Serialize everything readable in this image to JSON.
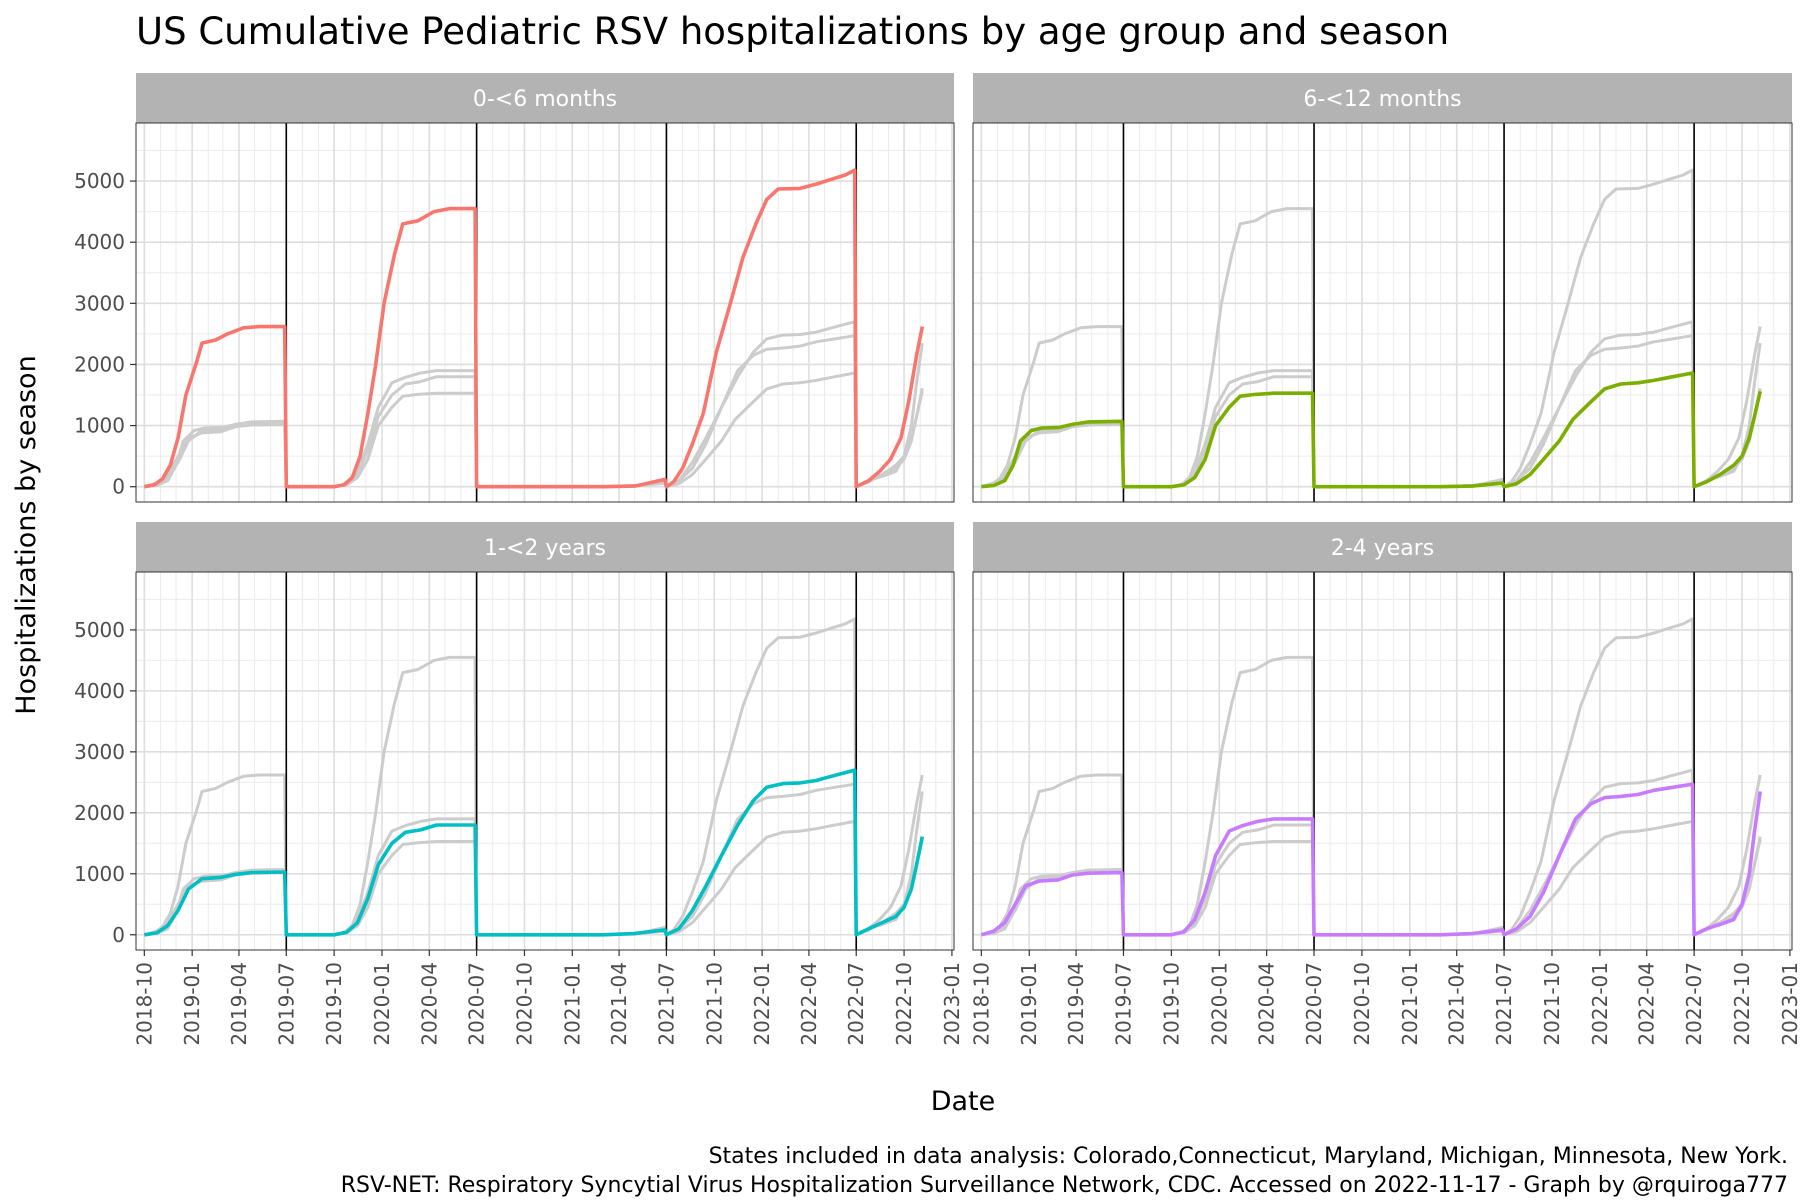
{
  "title": "US Cumulative Pediatric RSV hospitalizations by age group and season",
  "xlabel": "Date",
  "ylabel": "Hospitalizations by season",
  "caption_lines": [
    "States included in data analysis: Colorado,Connecticut, Maryland, Michigan, Minnesota, New York.",
    "RSV-NET: Respiratory Syncytial Virus Hospitalization Surveillance Network, CDC. Accessed on 2022-11-17 - Graph by @rquiroga777"
  ],
  "colors": {
    "0-<6 months": "#F8766D",
    "6-<12 months": "#7CAE00",
    "1-<2 years": "#00BFC4",
    "2-4 years": "#C77CFF",
    "background_series": "#cccccc",
    "season_divider": "#000000",
    "strip": "#b3b3b3"
  },
  "chart_data": {
    "type": "line",
    "facets": [
      "0-<6 months",
      "6-<12 months",
      "1-<2 years",
      "2-4 years"
    ],
    "x_ticks": [
      "2018-10",
      "2019-01",
      "2019-04",
      "2019-07",
      "2019-10",
      "2020-01",
      "2020-04",
      "2020-07",
      "2020-10",
      "2021-01",
      "2021-04",
      "2021-07",
      "2021-10",
      "2022-01",
      "2022-04",
      "2022-07",
      "2022-10",
      "2023-01"
    ],
    "y_ticks": [
      0,
      1000,
      2000,
      3000,
      4000,
      5000
    ],
    "xlim": [
      "2018-09-15",
      "2023-01-05"
    ],
    "ylim": [
      -250,
      5950
    ],
    "season_dividers": [
      "2019-07-01",
      "2020-07-01",
      "2021-07-01",
      "2022-07-01"
    ],
    "grid": true,
    "series": [
      {
        "name": "0-<6 months",
        "values": [
          [
            "2018-10-01",
            0
          ],
          [
            "2018-10-20",
            30
          ],
          [
            "2018-11-05",
            130
          ],
          [
            "2018-11-20",
            350
          ],
          [
            "2018-12-05",
            800
          ],
          [
            "2018-12-20",
            1500
          ],
          [
            "2019-01-10",
            2050
          ],
          [
            "2019-01-20",
            2350
          ],
          [
            "2019-02-15",
            2400
          ],
          [
            "2019-03-10",
            2500
          ],
          [
            "2019-04-10",
            2600
          ],
          [
            "2019-05-10",
            2620
          ],
          [
            "2019-06-28",
            2620
          ],
          [
            "2019-07-01",
            0
          ],
          [
            "2019-10-01",
            0
          ],
          [
            "2019-10-20",
            30
          ],
          [
            "2019-11-05",
            150
          ],
          [
            "2019-11-20",
            500
          ],
          [
            "2019-12-05",
            1200
          ],
          [
            "2019-12-20",
            2000
          ],
          [
            "2020-01-05",
            3000
          ],
          [
            "2020-01-25",
            3800
          ],
          [
            "2020-02-10",
            4300
          ],
          [
            "2020-03-10",
            4350
          ],
          [
            "2020-04-10",
            4500
          ],
          [
            "2020-05-10",
            4550
          ],
          [
            "2020-06-28",
            4550
          ],
          [
            "2020-07-01",
            0
          ],
          [
            "2021-03-01",
            0
          ],
          [
            "2021-05-01",
            10
          ],
          [
            "2021-06-28",
            120
          ],
          [
            "2021-07-01",
            0
          ],
          [
            "2021-07-15",
            80
          ],
          [
            "2021-08-01",
            300
          ],
          [
            "2021-08-20",
            700
          ],
          [
            "2021-09-10",
            1200
          ],
          [
            "2021-10-05",
            2200
          ],
          [
            "2021-11-01",
            3000
          ],
          [
            "2021-11-25",
            3750
          ],
          [
            "2021-12-20",
            4300
          ],
          [
            "2022-01-10",
            4700
          ],
          [
            "2022-02-01",
            4870
          ],
          [
            "2022-03-15",
            4880
          ],
          [
            "2022-04-15",
            4950
          ],
          [
            "2022-05-15",
            5030
          ],
          [
            "2022-06-10",
            5100
          ],
          [
            "2022-06-28",
            5180
          ],
          [
            "2022-07-01",
            0
          ],
          [
            "2022-07-25",
            100
          ],
          [
            "2022-08-15",
            250
          ],
          [
            "2022-09-05",
            450
          ],
          [
            "2022-09-25",
            800
          ],
          [
            "2022-10-10",
            1400
          ],
          [
            "2022-10-25",
            2150
          ],
          [
            "2022-11-05",
            2620
          ]
        ]
      },
      {
        "name": "6-<12 months",
        "values": [
          [
            "2018-10-01",
            0
          ],
          [
            "2018-10-25",
            20
          ],
          [
            "2018-11-15",
            100
          ],
          [
            "2018-12-01",
            350
          ],
          [
            "2018-12-15",
            750
          ],
          [
            "2019-01-05",
            920
          ],
          [
            "2019-01-25",
            960
          ],
          [
            "2019-02-28",
            970
          ],
          [
            "2019-03-25",
            1020
          ],
          [
            "2019-04-25",
            1060
          ],
          [
            "2019-06-28",
            1070
          ],
          [
            "2019-07-01",
            0
          ],
          [
            "2019-10-01",
            0
          ],
          [
            "2019-10-25",
            30
          ],
          [
            "2019-11-15",
            150
          ],
          [
            "2019-12-05",
            450
          ],
          [
            "2019-12-25",
            1000
          ],
          [
            "2020-01-20",
            1300
          ],
          [
            "2020-02-10",
            1480
          ],
          [
            "2020-03-10",
            1510
          ],
          [
            "2020-04-15",
            1530
          ],
          [
            "2020-06-28",
            1530
          ],
          [
            "2020-07-01",
            0
          ],
          [
            "2021-03-01",
            0
          ],
          [
            "2021-05-01",
            10
          ],
          [
            "2021-06-28",
            60
          ],
          [
            "2021-07-01",
            0
          ],
          [
            "2021-07-25",
            50
          ],
          [
            "2021-08-20",
            200
          ],
          [
            "2021-09-15",
            450
          ],
          [
            "2021-10-15",
            750
          ],
          [
            "2021-11-10",
            1100
          ],
          [
            "2021-12-10",
            1350
          ],
          [
            "2022-01-10",
            1600
          ],
          [
            "2022-02-10",
            1680
          ],
          [
            "2022-03-15",
            1700
          ],
          [
            "2022-04-15",
            1740
          ],
          [
            "2022-05-15",
            1790
          ],
          [
            "2022-06-28",
            1860
          ],
          [
            "2022-07-01",
            0
          ],
          [
            "2022-07-25",
            80
          ],
          [
            "2022-08-20",
            200
          ],
          [
            "2022-09-15",
            350
          ],
          [
            "2022-10-01",
            500
          ],
          [
            "2022-10-15",
            800
          ],
          [
            "2022-10-25",
            1150
          ],
          [
            "2022-11-05",
            1560
          ]
        ]
      },
      {
        "name": "1-<2 years",
        "values": [
          [
            "2018-10-01",
            0
          ],
          [
            "2018-10-25",
            30
          ],
          [
            "2018-11-15",
            150
          ],
          [
            "2018-12-05",
            400
          ],
          [
            "2018-12-25",
            750
          ],
          [
            "2019-01-20",
            920
          ],
          [
            "2019-02-25",
            940
          ],
          [
            "2019-03-25",
            990
          ],
          [
            "2019-04-25",
            1020
          ],
          [
            "2019-06-28",
            1030
          ],
          [
            "2019-07-01",
            0
          ],
          [
            "2019-10-01",
            0
          ],
          [
            "2019-10-25",
            40
          ],
          [
            "2019-11-15",
            200
          ],
          [
            "2019-12-05",
            600
          ],
          [
            "2019-12-25",
            1150
          ],
          [
            "2020-01-20",
            1500
          ],
          [
            "2020-02-15",
            1680
          ],
          [
            "2020-03-15",
            1720
          ],
          [
            "2020-04-15",
            1800
          ],
          [
            "2020-06-28",
            1800
          ],
          [
            "2020-07-01",
            0
          ],
          [
            "2021-03-01",
            0
          ],
          [
            "2021-05-01",
            20
          ],
          [
            "2021-06-28",
            80
          ],
          [
            "2021-07-01",
            0
          ],
          [
            "2021-07-25",
            100
          ],
          [
            "2021-08-20",
            400
          ],
          [
            "2021-09-15",
            800
          ],
          [
            "2021-10-15",
            1300
          ],
          [
            "2021-11-15",
            1800
          ],
          [
            "2021-12-15",
            2200
          ],
          [
            "2022-01-10",
            2420
          ],
          [
            "2022-02-10",
            2480
          ],
          [
            "2022-03-15",
            2490
          ],
          [
            "2022-04-15",
            2530
          ],
          [
            "2022-05-15",
            2600
          ],
          [
            "2022-06-28",
            2700
          ],
          [
            "2022-07-01",
            0
          ],
          [
            "2022-07-25",
            100
          ],
          [
            "2022-08-20",
            200
          ],
          [
            "2022-09-15",
            300
          ],
          [
            "2022-10-01",
            450
          ],
          [
            "2022-10-15",
            750
          ],
          [
            "2022-10-25",
            1150
          ],
          [
            "2022-11-05",
            1610
          ]
        ]
      },
      {
        "name": "2-4 years",
        "values": [
          [
            "2018-10-01",
            0
          ],
          [
            "2018-10-25",
            60
          ],
          [
            "2018-11-15",
            200
          ],
          [
            "2018-12-05",
            500
          ],
          [
            "2018-12-25",
            800
          ],
          [
            "2019-01-20",
            880
          ],
          [
            "2019-02-25",
            900
          ],
          [
            "2019-03-25",
            980
          ],
          [
            "2019-04-25",
            1010
          ],
          [
            "2019-06-28",
            1020
          ],
          [
            "2019-07-01",
            0
          ],
          [
            "2019-10-01",
            0
          ],
          [
            "2019-10-25",
            50
          ],
          [
            "2019-11-15",
            250
          ],
          [
            "2019-12-05",
            700
          ],
          [
            "2019-12-25",
            1300
          ],
          [
            "2020-01-20",
            1700
          ],
          [
            "2020-02-15",
            1790
          ],
          [
            "2020-03-15",
            1860
          ],
          [
            "2020-04-15",
            1900
          ],
          [
            "2020-06-28",
            1900
          ],
          [
            "2020-07-01",
            0
          ],
          [
            "2021-03-01",
            0
          ],
          [
            "2021-05-01",
            20
          ],
          [
            "2021-06-28",
            80
          ],
          [
            "2021-07-01",
            0
          ],
          [
            "2021-07-25",
            100
          ],
          [
            "2021-08-20",
            300
          ],
          [
            "2021-09-15",
            700
          ],
          [
            "2021-10-15",
            1300
          ],
          [
            "2021-11-15",
            1900
          ],
          [
            "2021-12-15",
            2150
          ],
          [
            "2022-01-10",
            2250
          ],
          [
            "2022-02-10",
            2270
          ],
          [
            "2022-03-15",
            2300
          ],
          [
            "2022-04-15",
            2370
          ],
          [
            "2022-05-15",
            2410
          ],
          [
            "2022-06-28",
            2470
          ],
          [
            "2022-07-01",
            0
          ],
          [
            "2022-07-25",
            100
          ],
          [
            "2022-08-20",
            170
          ],
          [
            "2022-09-15",
            250
          ],
          [
            "2022-10-01",
            500
          ],
          [
            "2022-10-15",
            1000
          ],
          [
            "2022-10-25",
            1700
          ],
          [
            "2022-11-05",
            2350
          ]
        ]
      }
    ]
  }
}
